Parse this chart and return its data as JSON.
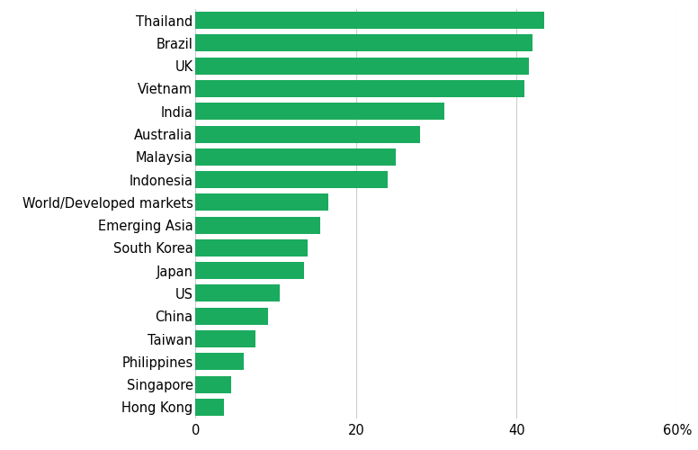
{
  "categories": [
    "Hong Kong",
    "Singapore",
    "Philippines",
    "Taiwan",
    "China",
    "US",
    "Japan",
    "South Korea",
    "Emerging Asia",
    "World/Developed markets",
    "Indonesia",
    "Malaysia",
    "Australia",
    "India",
    "Vietnam",
    "UK",
    "Brazil",
    "Thailand"
  ],
  "values": [
    3.5,
    4.5,
    6.0,
    7.5,
    9.0,
    10.5,
    13.5,
    14.0,
    15.5,
    16.5,
    24.0,
    25.0,
    28.0,
    31.0,
    41.0,
    41.5,
    42.0,
    43.5
  ],
  "bar_color": "#1aab5e",
  "background_color": "#ffffff",
  "xlim": [
    0,
    60
  ],
  "xticks": [
    0,
    20,
    40,
    60
  ],
  "xticklabels": [
    "0",
    "20",
    "40",
    "60%"
  ],
  "grid_color": "#cccccc",
  "label_fontsize": 10.5,
  "tick_fontsize": 10.5
}
